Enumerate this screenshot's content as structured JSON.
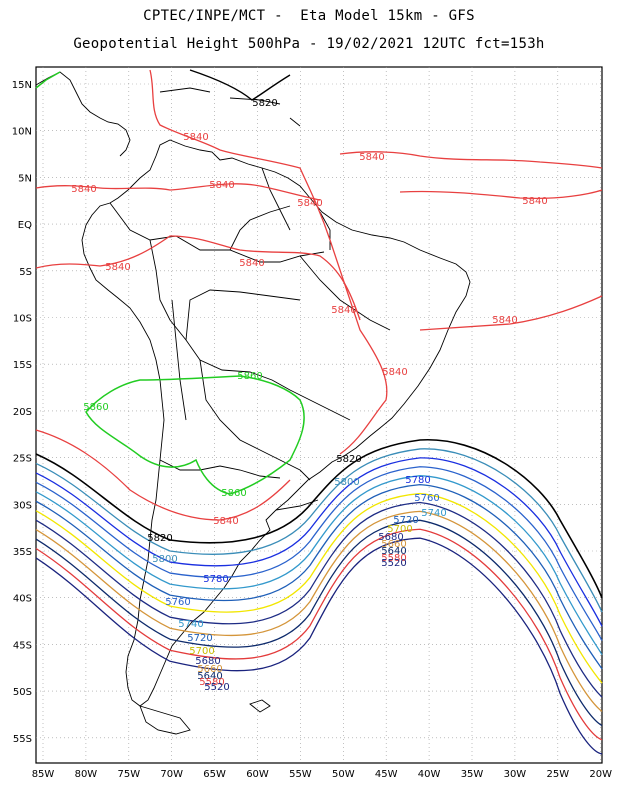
{
  "title_line1": "CPTEC/INPE/MCT -  Eta Model 15km - GFS",
  "title_line2": "Geopotential Height 500hPa - 19/02/2021 12UTC fct=153h",
  "axes": {
    "lat_labels": [
      "15N",
      "10N",
      "5N",
      "EQ",
      "5S",
      "10S",
      "15S",
      "20S",
      "25S",
      "30S",
      "35S",
      "40S",
      "45S",
      "50S",
      "55S"
    ],
    "lon_labels": [
      "85W",
      "80W",
      "75W",
      "70W",
      "65W",
      "60W",
      "55W",
      "50W",
      "45W",
      "40W",
      "35W",
      "30W",
      "25W",
      "20W"
    ]
  },
  "contours": [
    {
      "level": 5520,
      "color": "#1a237e",
      "label": "5520"
    },
    {
      "level": 5580,
      "color": "#e33b3b",
      "label": "5580"
    },
    {
      "level": 5640,
      "color": "#0d2a6b",
      "label": "5640"
    },
    {
      "level": 5660,
      "color": "#d4953a",
      "label": "5660"
    },
    {
      "level": 5680,
      "color": "#1e2c85",
      "label": "5680"
    },
    {
      "level": 5700,
      "color": "#f2e600",
      "label": "5700"
    },
    {
      "level": 5720,
      "color": "#1f5fb8",
      "label": "5720"
    },
    {
      "level": 5740,
      "color": "#3399cc",
      "label": "5740"
    },
    {
      "level": 5760,
      "color": "#2a62cc",
      "label": "5760"
    },
    {
      "level": 5780,
      "color": "#1a2fe0",
      "label": "5780"
    },
    {
      "level": 5800,
      "color": "#3a8db8",
      "label": "5800"
    },
    {
      "level": 5820,
      "color": "#000000",
      "label": "5820"
    },
    {
      "level": 5840,
      "color": "#e84040",
      "label": "5840"
    },
    {
      "level": 5860,
      "color": "#22cc22",
      "label": "5860"
    }
  ],
  "map_labels": {
    "c5820_n": "5820",
    "c5840_1": "5840",
    "c5840_2": "5840",
    "c5840_3": "5840",
    "c5840_4": "5840",
    "c5840_5": "5840",
    "c5840_6": "5840",
    "c5840_7": "5840",
    "c5840_8": "5840",
    "c5840_9": "5840",
    "c5840_10": "5840",
    "c5840_11": "5840",
    "c5860_1": "5860",
    "c5860_2": "5860",
    "c5860_3": "5860",
    "c5820_a": "5820",
    "c5820_b": "5820",
    "c5800_a": "5800",
    "c5800_b": "5800",
    "c5780_a": "5780",
    "c5780_b": "5780",
    "c5760_a": "5760",
    "c5760_b": "5760",
    "c5740_a": "5740",
    "c5740_b": "5740",
    "c5720_a": "5720",
    "c5720_b": "5720",
    "c5700_a": "5700",
    "c5700_b": "5700",
    "c5680_a": "5680",
    "c5680_b": "5680",
    "c5660_a": "5660",
    "c5660_b": "5660",
    "c5640_a": "5640",
    "c5640_b": "5640",
    "c5580_a": "5580",
    "c5580_b": "5580",
    "c5520_a": "5520",
    "c5520_b": "5520"
  }
}
